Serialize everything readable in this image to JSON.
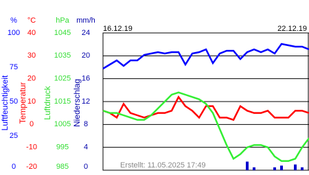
{
  "chart_data": {
    "type": "line",
    "date_start": "16.12.19",
    "date_end": "22.12.19",
    "footer": "Erstellt: 11.05.2025 17:49",
    "axes": [
      {
        "unit": "%",
        "title": "Luftfeuchtigkeit",
        "color": "#0000ff",
        "ylim": [
          0,
          100
        ],
        "yticks": [
          0,
          25,
          50,
          75,
          100
        ]
      },
      {
        "unit": "°C",
        "title": "Temperatur",
        "color": "#ff0000",
        "ylim": [
          -20,
          40
        ],
        "yticks": [
          -20,
          -10,
          0,
          10,
          20,
          30,
          40
        ]
      },
      {
        "unit": "hPa",
        "title": "Luftdruck",
        "color": "#33dd33",
        "ylim": [
          985,
          1045
        ],
        "yticks": [
          985,
          995,
          1005,
          1015,
          1025,
          1035,
          1045
        ]
      },
      {
        "unit": "mm/h",
        "title": "Niederschlag",
        "color": "#0000aa",
        "ylim": [
          0,
          24
        ],
        "yticks": [
          0,
          4,
          8,
          12,
          16,
          20,
          24
        ]
      }
    ],
    "series": [
      {
        "axis": 0,
        "kind": "line",
        "color": "#0000ff",
        "values": [
          74,
          77,
          80,
          76,
          80,
          80,
          84,
          85,
          86,
          85,
          86,
          86,
          77,
          85,
          86,
          88,
          78,
          85,
          87,
          87,
          81,
          86,
          88,
          86,
          88,
          85,
          92,
          91,
          90,
          90,
          88
        ]
      },
      {
        "axis": 1,
        "kind": "line",
        "color": "#ff0000",
        "values": [
          6,
          5,
          3,
          9,
          5,
          4,
          3,
          4,
          5,
          5,
          6,
          12,
          8,
          6,
          3,
          8,
          8,
          3,
          3,
          2,
          8,
          6,
          5,
          5,
          6,
          3,
          3,
          3,
          6,
          6,
          5
        ]
      },
      {
        "axis": 2,
        "kind": "line",
        "color": "#33ee33",
        "values": [
          1011,
          1010,
          1010,
          1009,
          1008,
          1007,
          1007,
          1009,
          1012,
          1015,
          1018,
          1019,
          1018,
          1017,
          1016,
          1014,
          1010,
          1003,
          996,
          990,
          992,
          995,
          996,
          996,
          995,
          991,
          989,
          989,
          990,
          995,
          999
        ]
      },
      {
        "axis": 3,
        "kind": "bar",
        "color": "#0000cc",
        "values": [
          0,
          0,
          0,
          0,
          0,
          0,
          0,
          0,
          0,
          0,
          0,
          0,
          0,
          0,
          0,
          0,
          0,
          0,
          0,
          0,
          0,
          1.5,
          0.5,
          0,
          0,
          0.5,
          0.8,
          0,
          1,
          0.5,
          0
        ]
      }
    ]
  }
}
